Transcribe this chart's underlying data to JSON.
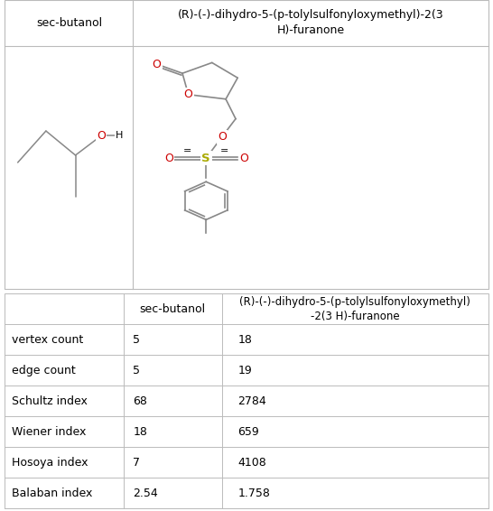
{
  "col1_header": "sec-butanol",
  "col2_header": "(R)-(-)-dihydro-5-(p-tolylsulfonyloxymethyl)-2(3\nH)-furanone",
  "col2_header_table": "(R)-(-)-dihydro-5-(p-tolylsulfonyloxymethyl)\n-2(3 H)-furanone",
  "rows": [
    {
      "label": "vertex count",
      "val1": "5",
      "val2": "18"
    },
    {
      "label": "edge count",
      "val1": "5",
      "val2": "19"
    },
    {
      "label": "Schultz index",
      "val1": "68",
      "val2": "2784"
    },
    {
      "label": "Wiener index",
      "val1": "18",
      "val2": "659"
    },
    {
      "label": "Hosoya index",
      "val1": "7",
      "val2": "4108"
    },
    {
      "label": "Balaban index",
      "val1": "2.54",
      "val2": "1.758"
    }
  ],
  "bg_color": "#ffffff",
  "border_color": "#bbbbbb",
  "text_color": "#000000",
  "atom_color_O": "#cc0000",
  "atom_color_S": "#aaaa00",
  "bond_color": "#888888",
  "font_size_header": 9,
  "font_size_table": 9,
  "font_size_atom": 9
}
